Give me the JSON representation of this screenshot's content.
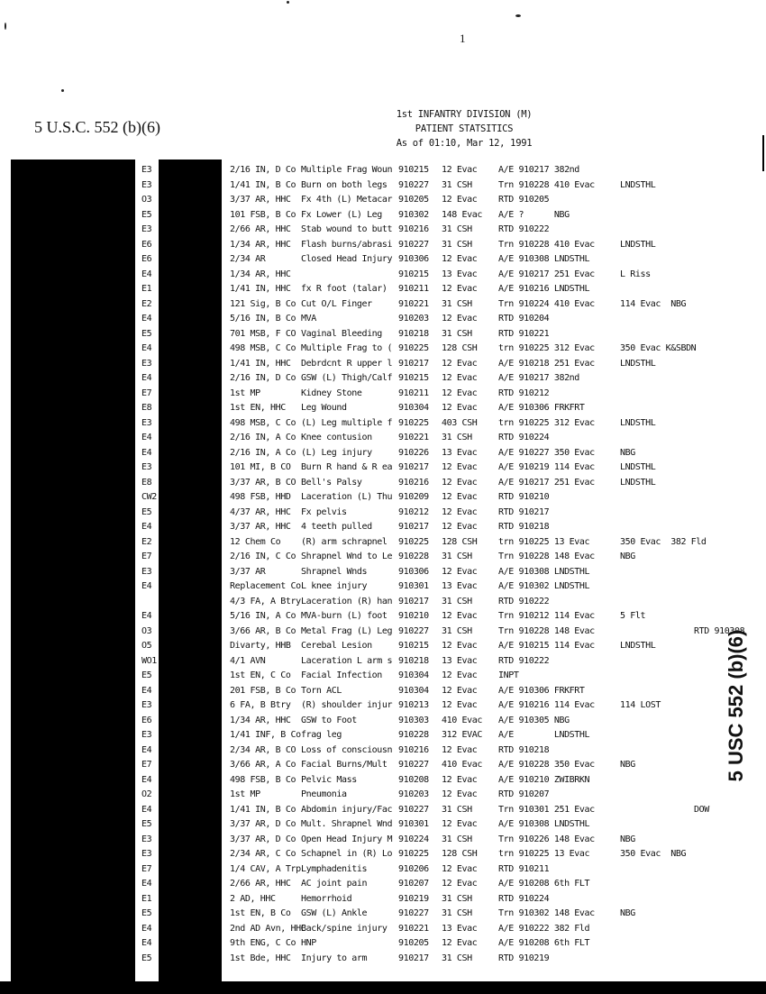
{
  "page_number": "1",
  "header": {
    "line1": "1st INFANTRY DIVISION (M)",
    "line2": "PATIENT STATSITICS",
    "line3": "As of 01:10, Mar 12, 1991"
  },
  "exemption_left": "5 U.S.C. 552 (b)(6)",
  "exemption_right": "5 USC 552 (b)(6)",
  "rows": [
    [
      "E3",
      "2/16 IN, D Co",
      "Multiple Frag Woun",
      "910215",
      "12 Evac",
      "A/E 910217 382nd",
      "",
      "",
      ""
    ],
    [
      "E3",
      "1/41 IN, B Co",
      "Burn on both legs",
      "910227",
      "31 CSH",
      "Trn 910228 410 Evac",
      "LNDSTHL",
      "",
      ""
    ],
    [
      "O3",
      "3/37 AR, HHC",
      "Fx 4th (L) Metacar",
      "910205",
      "12 Evac",
      "RTD 910205",
      "",
      "",
      ""
    ],
    [
      "E5",
      "101 FSB, B Co",
      "Fx Lower (L) Leg",
      "910302",
      "148 Evac",
      "A/E ?      NBG",
      "",
      "",
      ""
    ],
    [
      "E3",
      "2/66 AR, HHC",
      "Stab wound to butt",
      "910216",
      "31 CSH",
      "RTD 910222",
      "",
      "",
      ""
    ],
    [
      "E6",
      "1/34 AR, HHC",
      "Flash burns/abrasi",
      "910227",
      "31 CSH",
      "Trn 910228 410 Evac",
      "LNDSTHL",
      "",
      ""
    ],
    [
      "E6",
      "2/34 AR",
      "Closed Head Injury",
      "910306",
      "12 Evac",
      "A/E 910308 LNDSTHL",
      "",
      "",
      ""
    ],
    [
      "E4",
      "1/34 AR, HHC",
      "",
      "910215",
      "13 Evac",
      "A/E 910217 251 Evac",
      "L Riss",
      "",
      ""
    ],
    [
      "E1",
      "1/41 IN, HHC",
      "fx R foot (talar)",
      "910211",
      "12 Evac",
      "A/E 910216 LNDSTHL",
      "",
      "",
      ""
    ],
    [
      "E2",
      "121 Sig, B Co",
      "Cut O/L Finger",
      "910221",
      "31 CSH",
      "Trn 910224 410 Evac",
      "114 Evac  NBG",
      "",
      ""
    ],
    [
      "E4",
      "5/16 IN, B Co",
      "MVA",
      "910203",
      "12 Evac",
      "RTD 910204",
      "",
      "",
      ""
    ],
    [
      "E5",
      "701 MSB, F CO",
      "Vaginal Bleeding",
      "910218",
      "31 CSH",
      "RTD 910221",
      "",
      "",
      ""
    ],
    [
      "E4",
      "498 MSB, C Co",
      "Multiple Frag to (",
      "910225",
      "128 CSH",
      "trn 910225 312 Evac",
      "350 Evac K&SBDN",
      "",
      ""
    ],
    [
      "E3",
      "1/41 IN, HHC",
      "Debrdcnt R upper l",
      "910217",
      "12 Evac",
      "A/E 910218 251 Evac",
      "LNDSTHL",
      "",
      ""
    ],
    [
      "E4",
      "2/16 IN, D Co",
      "GSW (L) Thigh/Calf",
      "910215",
      "12 Evac",
      "A/E 910217 382nd",
      "",
      "",
      ""
    ],
    [
      "E7",
      "1st MP",
      "Kidney Stone",
      "910211",
      "12 Evac",
      "RTD 910212",
      "",
      "",
      ""
    ],
    [
      "E8",
      "1st EN, HHC",
      "Leg Wound",
      "910304",
      "12 Evac",
      "A/E 910306 FRKFRT",
      "",
      "",
      ""
    ],
    [
      "E3",
      "498 MSB, C Co",
      "(L) Leg multiple f",
      "910225",
      "403 CSH",
      "trn 910225 312 Evac",
      "LNDSTHL",
      "",
      ""
    ],
    [
      "E4",
      "2/16 IN, A Co",
      "Knee contusion",
      "910221",
      "31 CSH",
      "RTD 910224",
      "",
      "",
      ""
    ],
    [
      "E4",
      "2/16 IN, A Co",
      "(L) Leg injury",
      "910226",
      "13 Evac",
      "A/E 910227 350 Evac",
      "NBG",
      "",
      ""
    ],
    [
      "E3",
      "101 MI, B CO",
      "Burn R hand & R ea",
      "910217",
      "12 Evac",
      "A/E 910219 114 Evac",
      "LNDSTHL",
      "",
      ""
    ],
    [
      "E8",
      "3/37 AR, B CO",
      "Bell's Palsy",
      "910216",
      "12 Evac",
      "A/E 910217 251 Evac",
      "LNDSTHL",
      "",
      ""
    ],
    [
      "CW2",
      "498 FSB, HHD",
      "Laceration (L) Thu",
      "910209",
      "12 Evac",
      "RTD 910210",
      "",
      "",
      ""
    ],
    [
      "E5",
      "4/37 AR, HHC",
      "Fx pelvis",
      "910212",
      "12 Evac",
      "RTD 910217",
      "",
      "",
      ""
    ],
    [
      "E4",
      "3/37 AR, HHC",
      "4 teeth pulled",
      "910217",
      "12 Evac",
      "RTD 910218",
      "",
      "",
      ""
    ],
    [
      "E2",
      "12 Chem Co",
      "(R) arm schrapnel",
      "910225",
      "128 CSH",
      "trn 910225 13 Evac",
      "350 Evac  382 Fld",
      "",
      ""
    ],
    [
      "E7",
      "2/16 IN, C Co",
      "Shrapnel Wnd to Le",
      "910228",
      "31 CSH",
      "Trn 910228 148 Evac",
      "NBG",
      "",
      ""
    ],
    [
      "E3",
      "3/37 AR",
      "Shrapnel Wnds",
      "910306",
      "12 Evac",
      "A/E 910308 LNDSTHL",
      "",
      "",
      ""
    ],
    [
      "E4",
      "Replacement Co",
      "L knee injury",
      "910301",
      "13 Evac",
      "A/E 910302 LNDSTHL",
      "",
      "",
      ""
    ],
    [
      "",
      "4/3 FA, A Btry",
      "Laceration (R) han",
      "910217",
      "31 CSH",
      "RTD 910222",
      "",
      "",
      ""
    ],
    [
      "E4",
      "5/16 IN, A Co",
      "MVA-burn (L) foot",
      "910210",
      "12 Evac",
      "Trn 910212 114 Evac",
      "5 Flt",
      "",
      ""
    ],
    [
      "O3",
      "3/66 AR, B Co",
      "Metal Frag (L) Leg",
      "910227",
      "31 CSH",
      "Trn 910228 148 Evac",
      "",
      "",
      "RTD 910308"
    ],
    [
      "O5",
      "Divarty, HHB",
      "Cerebal Lesion",
      "910215",
      "12 Evac",
      "A/E 910215 114 Evac",
      "LNDSTHL",
      "",
      ""
    ],
    [
      "WO1",
      "4/1 AVN",
      "Laceration L arm s",
      "910218",
      "13 Evac",
      "RTD 910222",
      "",
      "",
      ""
    ],
    [
      "E5",
      "1st EN, C Co",
      "Facial Infection",
      "910304",
      "12 Evac",
      "INPT",
      "",
      "",
      ""
    ],
    [
      "E4",
      "201 FSB, B Co",
      "Torn ACL",
      "910304",
      "12 Evac",
      "A/E 910306 FRKFRT",
      "",
      "",
      ""
    ],
    [
      "E3",
      "6 FA, B Btry",
      "(R) shoulder injur",
      "910213",
      "12 Evac",
      "A/E 910216 114 Evac",
      "114 LOST",
      "",
      ""
    ],
    [
      "E6",
      "1/34 AR, HHC",
      "GSW to Foot",
      "910303",
      "410 Evac",
      "A/E 910305 NBG",
      "",
      "",
      ""
    ],
    [
      "E3",
      "1/41 INF, B Co",
      "frag leg",
      "910228",
      "312 EVAC",
      "A/E        LNDSTHL",
      "",
      "",
      ""
    ],
    [
      "E4",
      "2/34 AR, B CO",
      "Loss of consciousn",
      "910216",
      "12 Evac",
      "RTD 910218",
      "",
      "",
      ""
    ],
    [
      "E7",
      "3/66 AR, A Co",
      "Facial Burns/Mult",
      "910227",
      "410 Evac",
      "A/E 910228 350 Evac",
      "NBG",
      "",
      ""
    ],
    [
      "E4",
      "498 FSB, B Co",
      "Pelvic Mass",
      "910208",
      "12 Evac",
      "A/E 910210 ZWIBRKN",
      "",
      "",
      ""
    ],
    [
      "O2",
      "1st MP",
      "Pneumonia",
      "910203",
      "12 Evac",
      "RTD 910207",
      "",
      "",
      ""
    ],
    [
      "E4",
      "1/41 IN, B Co",
      "Abdomin injury/Fac",
      "910227",
      "31 CSH",
      "Trn 910301 251 Evac",
      "",
      "",
      "DOW"
    ],
    [
      "E5",
      "3/37 AR, D Co",
      "Mult. Shrapnel Wnd",
      "910301",
      "12 Evac",
      "A/E 910308 LNDSTHL",
      "",
      "",
      ""
    ],
    [
      "E3",
      "3/37 AR, D Co",
      "Open Head Injury M",
      "910224",
      "31 CSH",
      "Trn 910226 148 Evac",
      "NBG",
      "",
      ""
    ],
    [
      "E3",
      "2/34 AR, C Co",
      "Schapnel in (R) Lo",
      "910225",
      "128 CSH",
      "trn 910225 13 Evac",
      "350 Evac  NBG",
      "",
      ""
    ],
    [
      "E7",
      "1/4 CAV, A Trp",
      "Lymphadenitis",
      "910206",
      "12 Evac",
      "RTD 910211",
      "",
      "",
      ""
    ],
    [
      "E4",
      "2/66 AR, HHC",
      "AC joint pain",
      "910207",
      "12 Evac",
      "A/E 910208 6th FLT",
      "",
      "",
      ""
    ],
    [
      "E1",
      "2 AD, HHC",
      "Hemorrhoid",
      "910219",
      "31 CSH",
      "RTD 910224",
      "",
      "",
      ""
    ],
    [
      "E5",
      "1st EN, B Co",
      "GSW (L) Ankle",
      "910227",
      "31 CSH",
      "Trn 910302 148 Evac",
      "NBG",
      "",
      ""
    ],
    [
      "E4",
      "2nd AD Avn, HHC",
      "Back/spine injury",
      "910221",
      "13 Evac",
      "A/E 910222 382 Fld",
      "",
      "",
      ""
    ],
    [
      "E4",
      "9th ENG, C Co",
      "HNP",
      "910205",
      "12 Evac",
      "A/E 910208 6th FLT",
      "",
      "",
      ""
    ],
    [
      "E5",
      "1st Bde, HHC",
      "Injury to arm",
      "910217",
      "31 CSH",
      "RTD 910219",
      "",
      "",
      ""
    ]
  ]
}
